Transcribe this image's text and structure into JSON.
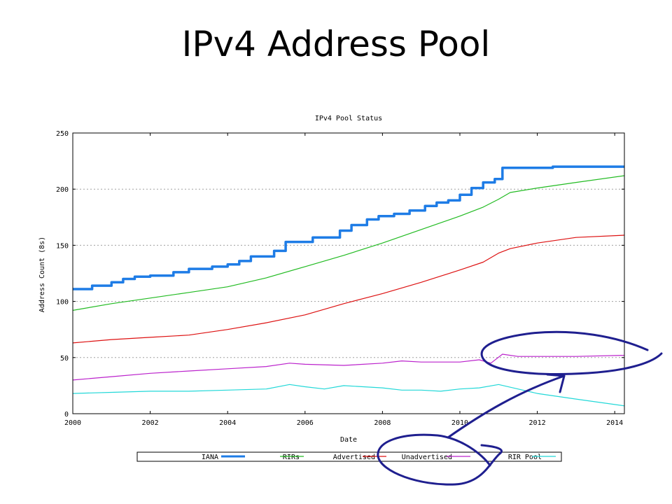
{
  "slide": {
    "title": "IPv4 Address Pool"
  },
  "chart_data": {
    "type": "line",
    "title": "IPv4 Pool Status",
    "xlabel": "Date",
    "ylabel": "Address Count (8s)",
    "xlim": [
      2000,
      2014.25
    ],
    "ylim": [
      0,
      250
    ],
    "x_ticks": [
      "2000",
      "2002",
      "2004",
      "2006",
      "2008",
      "2010",
      "2012",
      "2014"
    ],
    "y_ticks": [
      "0",
      "50",
      "100",
      "150",
      "200",
      "250"
    ],
    "grid": "horizontal dotted",
    "legend_position": "bottom",
    "series": [
      {
        "name": "IANA",
        "color": "#1e7ce6",
        "width": 3.5,
        "step": true,
        "x": [
          2000,
          2000.5,
          2001,
          2001.3,
          2001.6,
          2002,
          2002.6,
          2003,
          2003.6,
          2004,
          2004.3,
          2004.6,
          2005.2,
          2005.5,
          2006.2,
          2006.9,
          2007.2,
          2007.6,
          2007.9,
          2008.3,
          2008.7,
          2009.1,
          2009.4,
          2009.7,
          2010,
          2010.3,
          2010.6,
          2010.9,
          2011.1,
          2012,
          2012.4,
          2014.25
        ],
        "y": [
          111,
          114,
          117,
          120,
          122,
          123,
          126,
          129,
          131,
          133,
          136,
          140,
          145,
          153,
          157,
          163,
          168,
          173,
          176,
          178,
          181,
          185,
          188,
          190,
          195,
          201,
          206,
          209,
          219,
          219,
          220,
          220
        ]
      },
      {
        "name": "RIRs",
        "color": "#22bb22",
        "width": 1.2,
        "step": false,
        "x": [
          2000,
          2001,
          2002,
          2003,
          2004,
          2005,
          2006,
          2007,
          2008,
          2009,
          2010,
          2010.6,
          2011,
          2011.3,
          2012,
          2013,
          2014.25
        ],
        "y": [
          92,
          98,
          103,
          108,
          113,
          121,
          131,
          141,
          152,
          164,
          176,
          184,
          191,
          197,
          201,
          206,
          212
        ]
      },
      {
        "name": "Advertised",
        "color": "#dd1111",
        "width": 1.2,
        "step": false,
        "x": [
          2000,
          2001,
          2002,
          2003,
          2004,
          2005,
          2006,
          2007,
          2008,
          2009,
          2010,
          2010.6,
          2011,
          2011.3,
          2012,
          2013,
          2014.25
        ],
        "y": [
          63,
          66,
          68,
          70,
          75,
          81,
          88,
          98,
          107,
          117,
          128,
          135,
          143,
          147,
          152,
          157,
          159
        ]
      },
      {
        "name": "Unadvertised",
        "color": "#bb22cc",
        "width": 1.2,
        "step": false,
        "x": [
          2000,
          2001,
          2002,
          2003,
          2004,
          2005,
          2005.6,
          2006,
          2007,
          2008,
          2008.5,
          2009,
          2010,
          2010.5,
          2010.8,
          2011.1,
          2011.5,
          2012,
          2013,
          2014.25
        ],
        "y": [
          30,
          33,
          36,
          38,
          40,
          42,
          45,
          44,
          43,
          45,
          47,
          46,
          46,
          48,
          45,
          53,
          51,
          51,
          51,
          52
        ]
      },
      {
        "name": "RIR Pool",
        "color": "#22d8d8",
        "width": 1.2,
        "step": false,
        "x": [
          2000,
          2001,
          2002,
          2003,
          2004,
          2005,
          2005.6,
          2006,
          2006.5,
          2007,
          2007.5,
          2008,
          2008.5,
          2009,
          2009.5,
          2010,
          2010.5,
          2011,
          2011.5,
          2012,
          2013,
          2014.25
        ],
        "y": [
          18,
          19,
          20,
          20,
          21,
          22,
          26,
          24,
          22,
          25,
          24,
          23,
          21,
          21,
          20,
          22,
          23,
          26,
          22,
          18,
          13,
          7
        ]
      }
    ]
  }
}
